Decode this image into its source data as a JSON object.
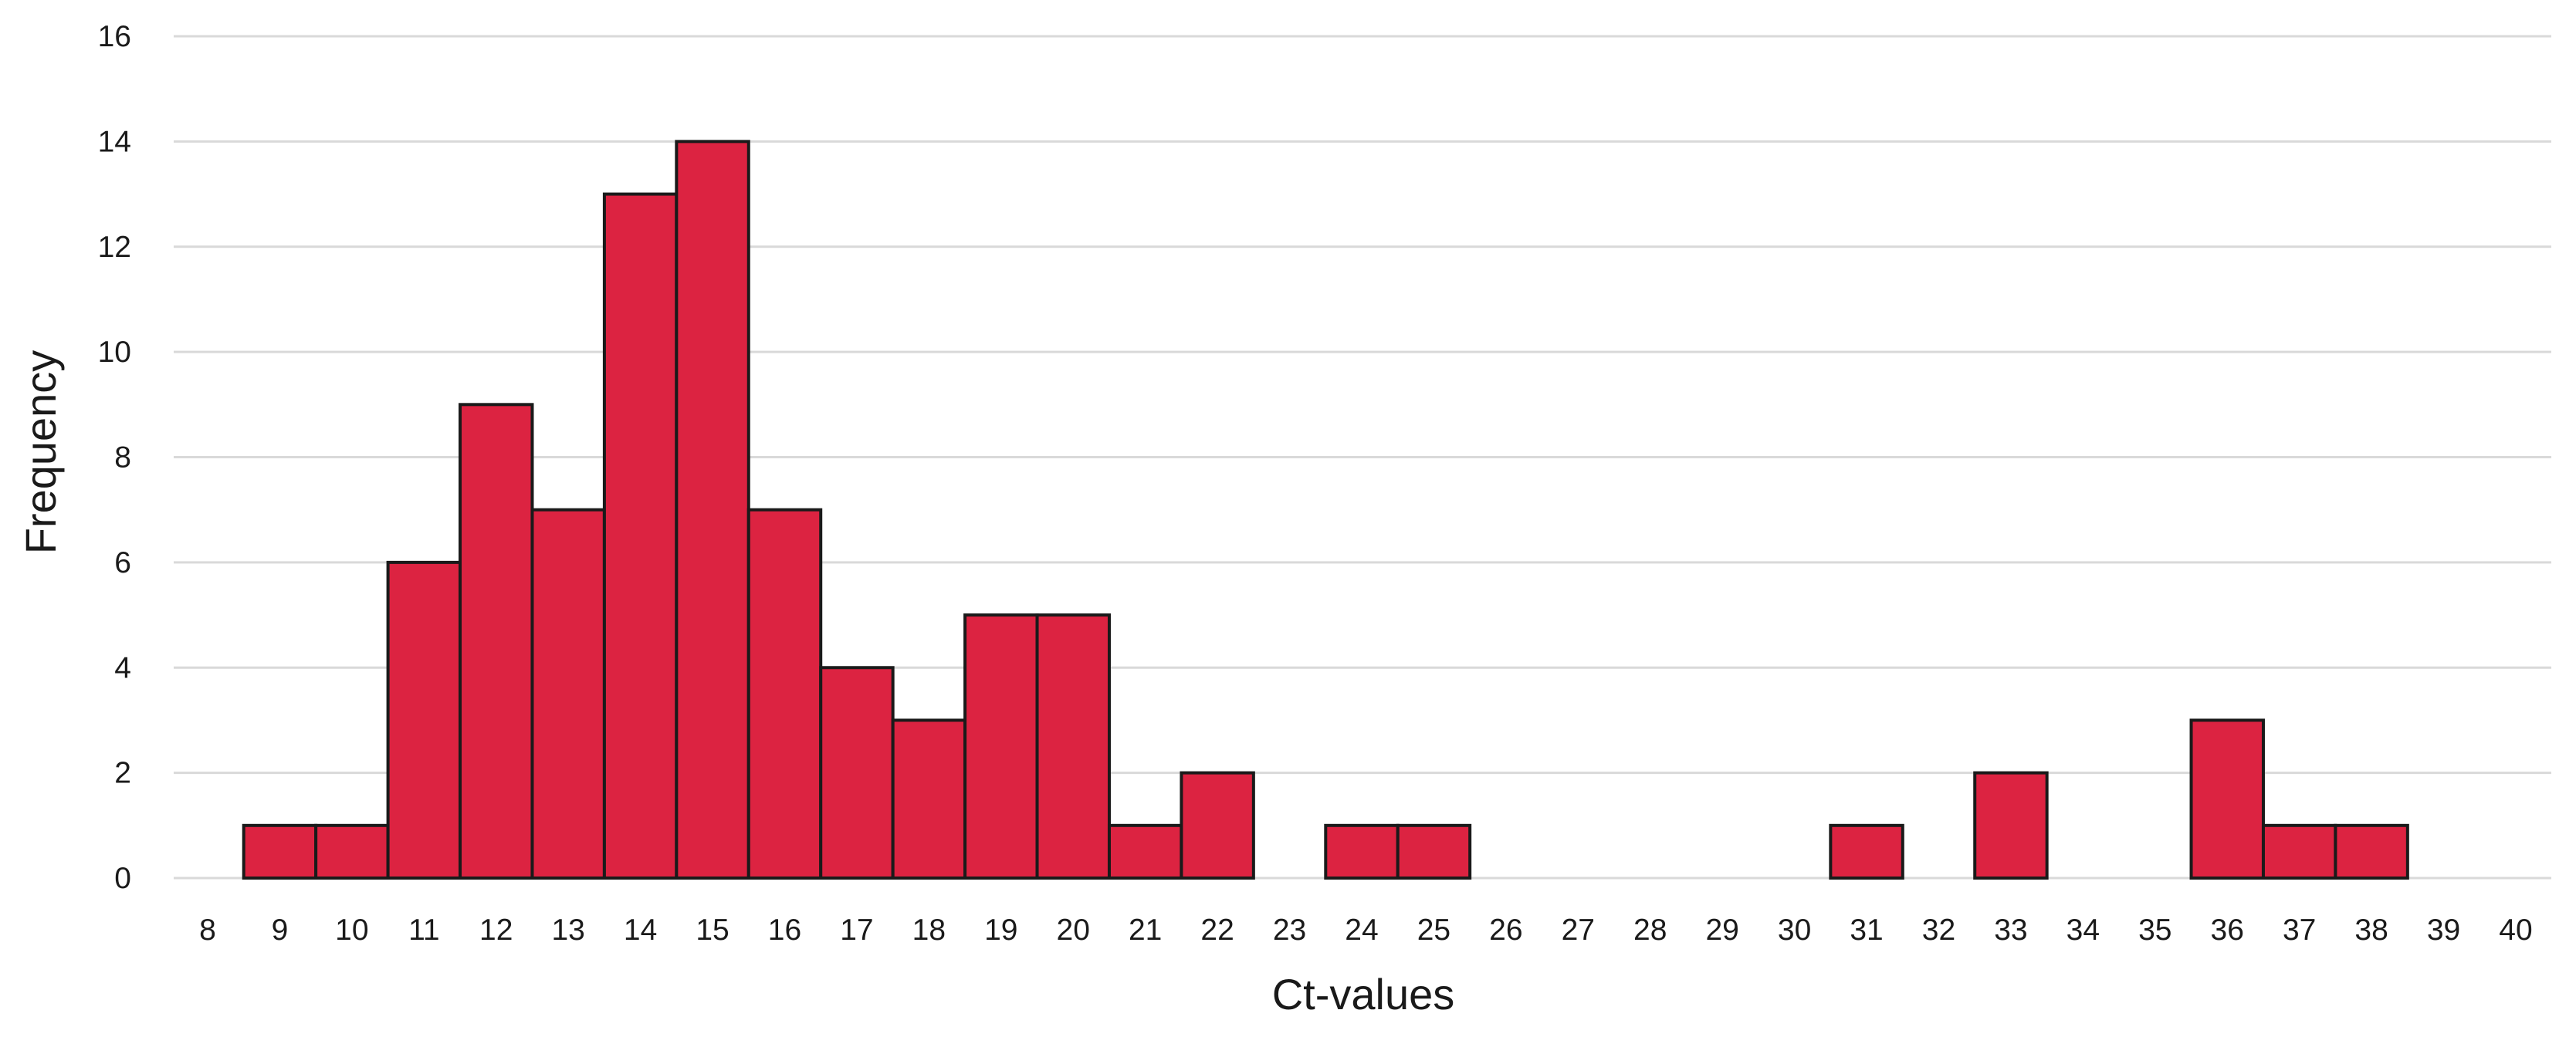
{
  "chart_data": {
    "type": "bar",
    "subtype": "histogram",
    "title": "",
    "xlabel": "Ct-values",
    "ylabel": "Frequency",
    "categories": [
      "8",
      "9",
      "10",
      "11",
      "12",
      "13",
      "14",
      "15",
      "16",
      "17",
      "18",
      "19",
      "20",
      "21",
      "22",
      "23",
      "24",
      "25",
      "26",
      "27",
      "28",
      "29",
      "30",
      "31",
      "32",
      "33",
      "34",
      "35",
      "36",
      "37",
      "38",
      "39",
      "40"
    ],
    "values": [
      0,
      1,
      1,
      6,
      9,
      7,
      13,
      14,
      7,
      4,
      3,
      5,
      5,
      1,
      2,
      0,
      1,
      1,
      0,
      0,
      0,
      0,
      0,
      1,
      0,
      2,
      0,
      0,
      3,
      1,
      1,
      0,
      0
    ],
    "ylim": [
      0,
      16
    ],
    "yticks": [
      0,
      2,
      4,
      6,
      8,
      10,
      12,
      14,
      16
    ],
    "grid": "horizontal",
    "legend": "none",
    "bar_color": "#dc2341",
    "edge_color": "#1a1a1a",
    "grid_color": "#d9d9d9"
  }
}
